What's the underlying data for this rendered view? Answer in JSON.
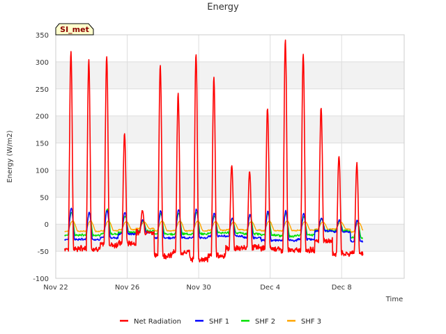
{
  "chart_data": {
    "type": "line",
    "title": "Energy",
    "xlabel": "Time",
    "ylabel": "Energy (W/m2)",
    "badge": "SI_met",
    "ylim": [
      -100,
      350
    ],
    "yticks": [
      -100,
      -50,
      0,
      50,
      100,
      150,
      200,
      250,
      300,
      350
    ],
    "xlim": [
      0,
      19.5
    ],
    "xticks": [
      {
        "value": 0,
        "label": "Nov 22"
      },
      {
        "value": 4,
        "label": "Nov 26"
      },
      {
        "value": 8,
        "label": "Nov 30"
      },
      {
        "value": 12,
        "label": "Dec 4"
      },
      {
        "value": 16,
        "label": "Dec 8"
      }
    ],
    "grid": true,
    "legend_position": "bottom",
    "day_params": {
      "net_peaks": [
        320,
        303,
        310,
        167,
        27,
        295,
        240,
        316,
        270,
        110,
        98,
        215,
        340,
        315,
        215,
        127,
        112
      ],
      "net_nights": [
        -45,
        -45,
        -38,
        -35,
        -15,
        -58,
        -52,
        -65,
        -58,
        -45,
        -42,
        -45,
        -48,
        -48,
        -30,
        -55,
        -52
      ],
      "shf1_peaks": [
        30,
        22,
        25,
        22,
        8,
        25,
        27,
        28,
        20,
        12,
        18,
        25,
        25,
        20,
        12,
        8,
        8
      ],
      "shf1_nights": [
        -28,
        -28,
        -25,
        -18,
        -15,
        -25,
        -25,
        -25,
        -22,
        -22,
        -25,
        -30,
        -30,
        -28,
        -12,
        -14,
        -32
      ],
      "shf2_peaks": [
        22,
        20,
        28,
        15,
        6,
        20,
        20,
        22,
        15,
        10,
        16,
        20,
        20,
        14,
        10,
        6,
        6
      ],
      "shf2_nights": [
        -20,
        -20,
        -18,
        -15,
        -12,
        -18,
        -18,
        -18,
        -16,
        -16,
        -18,
        -20,
        -22,
        -20,
        -12,
        -12,
        -25
      ],
      "shf3_peaks": [
        6,
        6,
        6,
        5,
        4,
        6,
        6,
        6,
        5,
        4,
        5,
        6,
        6,
        5,
        4,
        4,
        3
      ],
      "shf3_nights": [
        -13,
        -13,
        -12,
        -10,
        -8,
        -12,
        -12,
        -12,
        -11,
        -10,
        -11,
        -12,
        -12,
        -11,
        -9,
        -9,
        -14
      ]
    },
    "series": [
      {
        "name": "Net Radiation",
        "color": "#ff0000"
      },
      {
        "name": "SHF 1",
        "color": "#0000ff"
      },
      {
        "name": "SHF 2",
        "color": "#00e000"
      },
      {
        "name": "SHF 3",
        "color": "#ffa500"
      }
    ]
  }
}
